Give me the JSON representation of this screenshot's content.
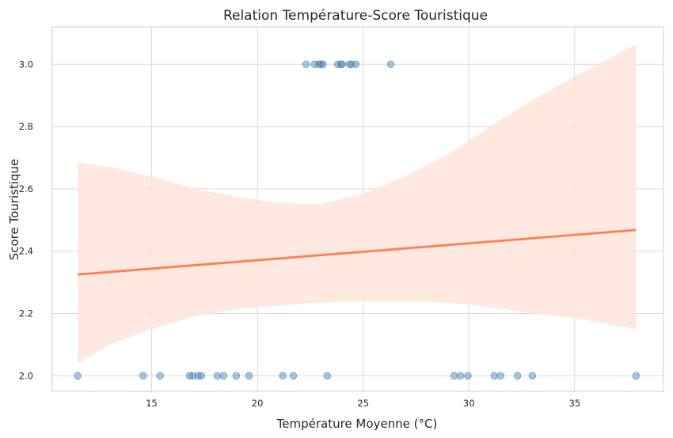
{
  "chart_data": {
    "type": "scatter",
    "title": "Relation Température-Score Touristique",
    "xlabel": "Température Moyenne (°C)",
    "ylabel": "Score Touristique",
    "xlim": [
      10.3,
      39.2
    ],
    "ylim": [
      1.95,
      3.12
    ],
    "xticks": [
      15,
      20,
      25,
      30,
      35
    ],
    "yticks": [
      2.0,
      2.2,
      2.4,
      2.6,
      2.8,
      3.0
    ],
    "grid": true,
    "series": [
      {
        "kind": "points",
        "points": [
          {
            "x": 22.3,
            "y": 3.0
          },
          {
            "x": 22.7,
            "y": 3.0
          },
          {
            "x": 22.9,
            "y": 3.0
          },
          {
            "x": 23.0,
            "y": 3.0
          },
          {
            "x": 23.1,
            "y": 3.0
          },
          {
            "x": 23.8,
            "y": 3.0
          },
          {
            "x": 23.95,
            "y": 3.0
          },
          {
            "x": 24.0,
            "y": 3.0
          },
          {
            "x": 24.35,
            "y": 3.0
          },
          {
            "x": 24.45,
            "y": 3.0
          },
          {
            "x": 24.65,
            "y": 3.0
          },
          {
            "x": 26.3,
            "y": 3.0
          },
          {
            "x": 11.5,
            "y": 2.0
          },
          {
            "x": 14.6,
            "y": 2.0
          },
          {
            "x": 15.4,
            "y": 2.0
          },
          {
            "x": 16.8,
            "y": 2.0
          },
          {
            "x": 16.95,
            "y": 2.0
          },
          {
            "x": 17.2,
            "y": 2.0
          },
          {
            "x": 17.35,
            "y": 2.0
          },
          {
            "x": 18.1,
            "y": 2.0
          },
          {
            "x": 18.4,
            "y": 2.0
          },
          {
            "x": 19.0,
            "y": 2.0
          },
          {
            "x": 19.6,
            "y": 2.0
          },
          {
            "x": 21.2,
            "y": 2.0
          },
          {
            "x": 21.7,
            "y": 2.0
          },
          {
            "x": 23.3,
            "y": 2.0
          },
          {
            "x": 29.3,
            "y": 2.0
          },
          {
            "x": 29.6,
            "y": 2.0
          },
          {
            "x": 29.95,
            "y": 2.0
          },
          {
            "x": 31.2,
            "y": 2.0
          },
          {
            "x": 31.5,
            "y": 2.0
          },
          {
            "x": 32.3,
            "y": 2.0
          },
          {
            "x": 33.0,
            "y": 2.0
          },
          {
            "x": 37.9,
            "y": 2.0
          }
        ]
      },
      {
        "kind": "regression",
        "x": [
          11.5,
          37.9
        ],
        "y": [
          2.325,
          2.468
        ]
      },
      {
        "kind": "confidence_band",
        "x": [
          11.5,
          13,
          15,
          17,
          19,
          21,
          23,
          25,
          27,
          29,
          31,
          33,
          35,
          37.9
        ],
        "lower": [
          2.04,
          2.1,
          2.15,
          2.19,
          2.215,
          2.225,
          2.235,
          2.24,
          2.24,
          2.235,
          2.22,
          2.2,
          2.185,
          2.15
        ],
        "upper": [
          2.685,
          2.67,
          2.64,
          2.6,
          2.575,
          2.555,
          2.55,
          2.585,
          2.64,
          2.71,
          2.8,
          2.885,
          2.96,
          3.065
        ]
      }
    ],
    "colors": {
      "points": "#4682b4",
      "regression": "#ff7f50",
      "band": "#ffe4da",
      "grid": "#d9d9d9",
      "spine": "#cccccc",
      "text": "#262626"
    }
  }
}
